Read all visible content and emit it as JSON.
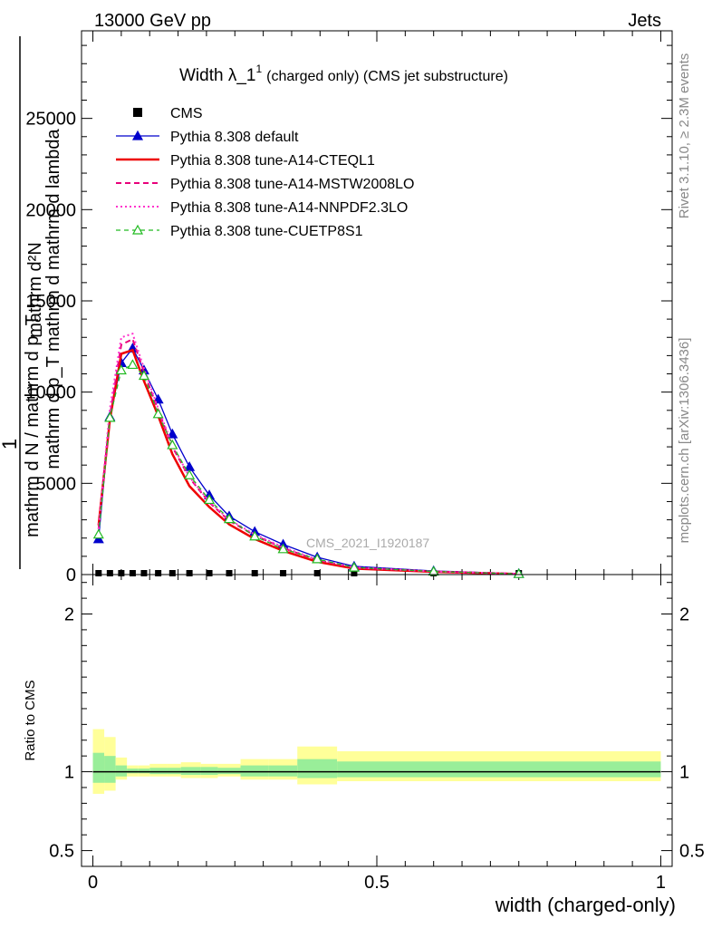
{
  "header": {
    "left": "13000 GeV pp",
    "right": "Jets"
  },
  "title": {
    "main": "Width λ_1",
    "superscript": "1",
    "suffix": "(charged only) (CMS jet substructure)"
  },
  "side_labels": {
    "right_top": "Rivet 3.1.10, ≥ 2.3M events",
    "right_bottom": "mcplots.cern.ch [arXiv:1306.3436]"
  },
  "watermark": "CMS_2021_I1920187",
  "ylabel_main": {
    "line1": "mathrm d²N",
    "line2": "mathrm d p_T mathrm d mathrm d lambda",
    "one": "1",
    "den": "mathrm d N / mathrm d p_T"
  },
  "ylabel_ratio": "Ratio to CMS",
  "xlabel": "width (charged-only)",
  "legend": [
    {
      "label": "CMS",
      "color": "#000000",
      "style": "data"
    },
    {
      "label": "Pythia 8.308 default",
      "color": "#0000cc",
      "style": "solid-triangle"
    },
    {
      "label": "Pythia 8.308 tune-A14-CTEQL1",
      "color": "#ee0000",
      "style": "solid-thick"
    },
    {
      "label": "Pythia 8.308 tune-A14-MSTW2008LO",
      "color": "#e8007a",
      "style": "dashed"
    },
    {
      "label": "Pythia 8.308 tune-A14-NNPDF2.3LO",
      "color": "#ff33cc",
      "style": "dotted"
    },
    {
      "label": "Pythia 8.308 tune-CUETP8S1",
      "color": "#22bb22",
      "style": "dashed-open-triangle"
    }
  ],
  "chart_data": {
    "type": "line",
    "title": "Width λ_1^1 (charged only) (CMS jet substructure)",
    "xlabel": "width (charged-only)",
    "xlim": [
      -0.02,
      1.02
    ],
    "main_panel": {
      "ylim": [
        0,
        29800
      ],
      "yticks": [
        0,
        5000,
        10000,
        15000,
        20000,
        25000
      ],
      "ytick_labels": [
        "0",
        "5000",
        "10000",
        "15000",
        "20000",
        "25000"
      ]
    },
    "ratio_panel": {
      "ylabel": "Ratio to CMS",
      "ylim": [
        0.4,
        2.25
      ],
      "yticks": [
        0.5,
        1,
        2
      ],
      "ytick_labels": [
        "0.5",
        "1",
        "2"
      ]
    },
    "xticks": [
      0,
      0.5,
      1
    ],
    "xtick_labels": [
      "0",
      "0.5",
      "1"
    ],
    "x": [
      0.01,
      0.03,
      0.05,
      0.07,
      0.09,
      0.115,
      0.14,
      0.17,
      0.205,
      0.24,
      0.285,
      0.335,
      0.395,
      0.46,
      0.6,
      0.75
    ],
    "series": [
      {
        "name": "CMS",
        "values": [
          0,
          0,
          0,
          0,
          0,
          0,
          0,
          0,
          0,
          0,
          0,
          0,
          0,
          0,
          0,
          0
        ]
      },
      {
        "name": "Pythia 8.308 default",
        "values": [
          1950,
          8650,
          11600,
          12400,
          11200,
          9600,
          7700,
          5900,
          4350,
          3200,
          2350,
          1650,
          950,
          450,
          200,
          50
        ]
      },
      {
        "name": "Pythia 8.308 tune-A14-CTEQL1",
        "values": [
          2700,
          8500,
          12100,
          12300,
          10600,
          8700,
          6600,
          4850,
          3700,
          2750,
          1950,
          1300,
          700,
          330,
          150,
          30
        ]
      },
      {
        "name": "Pythia 8.308 tune-A14-MSTW2008LO",
        "values": [
          2500,
          8700,
          12600,
          12900,
          11100,
          9000,
          7000,
          5300,
          3950,
          2950,
          2150,
          1450,
          800,
          380,
          170,
          40
        ]
      },
      {
        "name": "Pythia 8.308 tune-A14-NNPDF2.3LO",
        "values": [
          2500,
          9100,
          13000,
          13200,
          11300,
          9100,
          7100,
          5350,
          4000,
          3000,
          2200,
          1500,
          820,
          390,
          170,
          40
        ]
      },
      {
        "name": "Pythia 8.308 tune-CUETP8S1",
        "values": [
          2200,
          8600,
          11200,
          11500,
          10900,
          8800,
          7100,
          5450,
          4100,
          3050,
          2100,
          1400,
          850,
          390,
          170,
          40
        ]
      }
    ],
    "ratio_bands": {
      "edges": [
        0.0,
        0.02,
        0.04,
        0.06,
        0.08,
        0.1,
        0.13,
        0.155,
        0.19,
        0.22,
        0.26,
        0.31,
        0.36,
        0.43,
        1.0
      ],
      "yellow_lo": [
        0.86,
        0.88,
        0.95,
        0.97,
        0.97,
        0.97,
        0.97,
        0.96,
        0.96,
        0.97,
        0.95,
        0.95,
        0.92,
        0.94
      ],
      "yellow_hi": [
        1.27,
        1.22,
        1.09,
        1.04,
        1.04,
        1.05,
        1.05,
        1.06,
        1.05,
        1.05,
        1.08,
        1.08,
        1.16,
        1.13
      ],
      "green_lo": [
        0.93,
        0.93,
        0.97,
        0.99,
        0.99,
        0.985,
        0.985,
        0.98,
        0.98,
        0.985,
        0.97,
        0.97,
        0.96,
        0.965
      ],
      "green_hi": [
        1.12,
        1.1,
        1.04,
        1.02,
        1.02,
        1.025,
        1.025,
        1.03,
        1.03,
        1.025,
        1.04,
        1.04,
        1.08,
        1.065
      ]
    },
    "grid": false,
    "legend_position": "top-left"
  }
}
